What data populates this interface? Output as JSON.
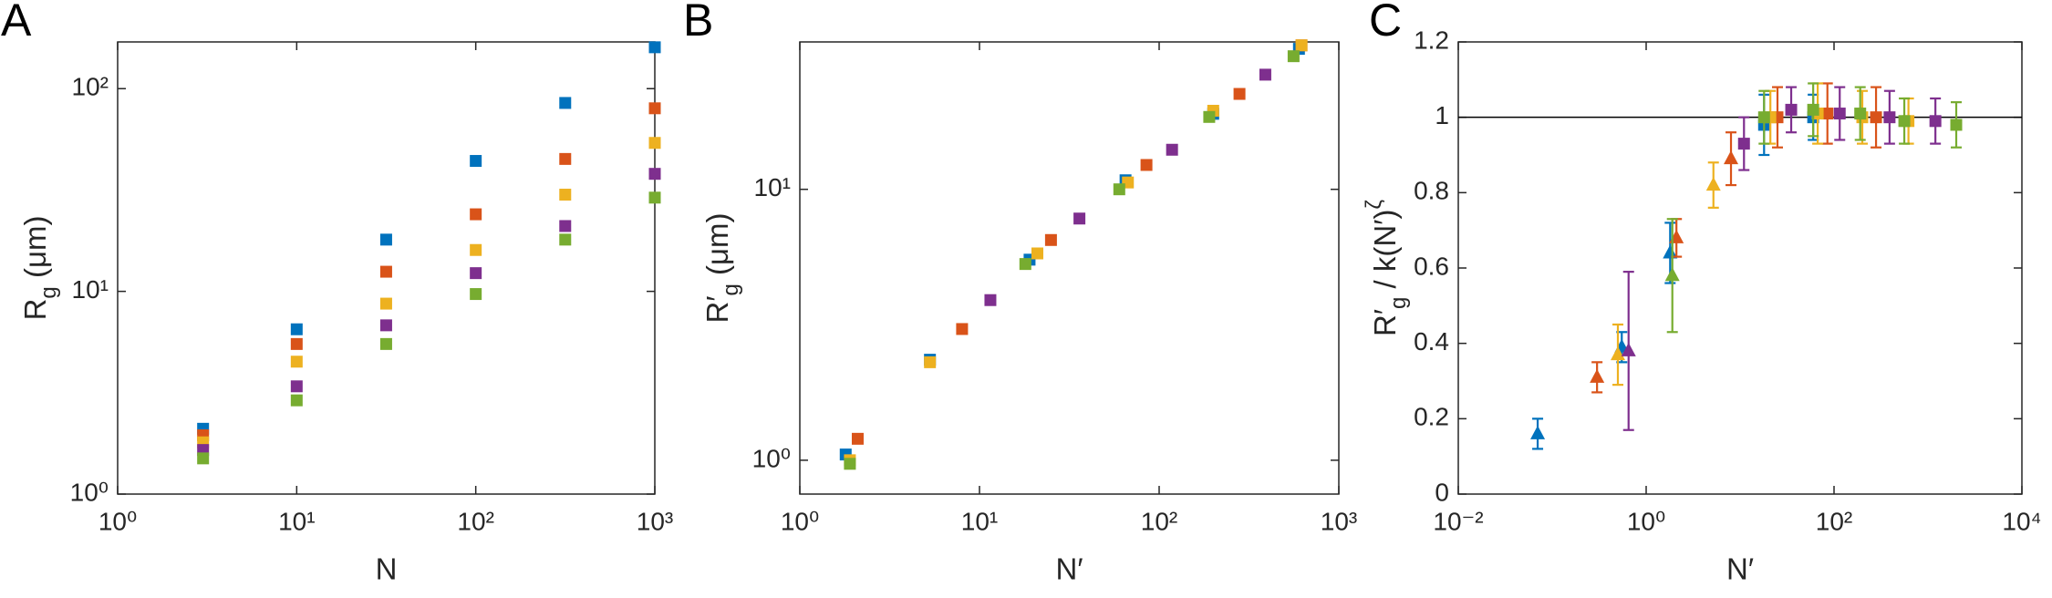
{
  "chart_data": [
    {
      "type": "scatter",
      "panel_label": "A",
      "xlabel": "N",
      "ylabel": [
        {
          "text": "R"
        },
        {
          "text": "g",
          "script": "sub"
        },
        {
          "text": " (μm)"
        }
      ],
      "xscale": "log",
      "yscale": "log",
      "xlim": [
        1,
        1000
      ],
      "ylim": [
        1,
        170
      ],
      "xticks": [
        {
          "value": 1,
          "label": "10⁰"
        },
        {
          "value": 10,
          "label": "10¹"
        },
        {
          "value": 100,
          "label": "10²"
        },
        {
          "value": 1000,
          "label": "10³"
        }
      ],
      "yticks": [
        {
          "value": 1,
          "label": "10⁰"
        },
        {
          "value": 10,
          "label": "10¹"
        },
        {
          "value": 100,
          "label": "10²"
        }
      ],
      "series": [
        {
          "color": "#0072BD",
          "x": [
            3,
            10,
            31.6,
            100,
            316,
            1000
          ],
          "values": [
            2.1,
            6.5,
            18,
            44,
            85,
            160
          ]
        },
        {
          "color": "#D95319",
          "x": [
            3,
            10,
            31.6,
            100,
            316,
            1000
          ],
          "values": [
            1.95,
            5.5,
            12.5,
            24,
            45,
            80
          ]
        },
        {
          "color": "#EDB120",
          "x": [
            3,
            10,
            31.6,
            100,
            316,
            1000
          ],
          "values": [
            1.8,
            4.5,
            8.7,
            16,
            30,
            54
          ]
        },
        {
          "color": "#7E2F8E",
          "x": [
            3,
            10,
            31.6,
            100,
            316,
            1000
          ],
          "values": [
            1.65,
            3.4,
            6.8,
            12.3,
            21,
            38
          ]
        },
        {
          "color": "#77AC30",
          "x": [
            3,
            10,
            31.6,
            100,
            316,
            1000
          ],
          "values": [
            1.5,
            2.9,
            5.5,
            9.7,
            18,
            29
          ]
        }
      ]
    },
    {
      "type": "scatter",
      "panel_label": "B",
      "xlabel": "N′",
      "ylabel": [
        {
          "text": "R′"
        },
        {
          "text": "g",
          "script": "sub"
        },
        {
          "text": " (μm)"
        }
      ],
      "xscale": "log",
      "yscale": "log",
      "xlim": [
        1,
        1000
      ],
      "ylim": [
        0.75,
        35
      ],
      "xticks": [
        {
          "value": 1,
          "label": "10⁰"
        },
        {
          "value": 10,
          "label": "10¹"
        },
        {
          "value": 100,
          "label": "10²"
        },
        {
          "value": 1000,
          "label": "10³"
        }
      ],
      "yticks": [
        {
          "value": 1,
          "label": "10⁰"
        },
        {
          "value": 10,
          "label": "10¹"
        }
      ],
      "series": [
        {
          "color": "#0072BD",
          "x": [
            1.8,
            5.3,
            19,
            65,
            200,
            600
          ],
          "values": [
            1.05,
            2.35,
            5.5,
            10.8,
            19,
            33
          ]
        },
        {
          "color": "#D95319",
          "x": [
            2.1,
            8,
            25,
            85,
            280,
            620
          ],
          "values": [
            1.2,
            3.05,
            6.5,
            12.3,
            22.5,
            34
          ]
        },
        {
          "color": "#EDB120",
          "x": [
            1.9,
            5.3,
            21,
            67,
            200,
            620
          ],
          "values": [
            1.0,
            2.3,
            5.8,
            10.6,
            19.5,
            34
          ]
        },
        {
          "color": "#7E2F8E",
          "x": [
            11.5,
            36,
            118,
            390
          ],
          "values": [
            3.9,
            7.8,
            14,
            26.5
          ]
        },
        {
          "color": "#77AC30",
          "x": [
            1.9,
            18,
            60,
            190,
            560
          ],
          "values": [
            0.97,
            5.3,
            10,
            18.5,
            31
          ]
        }
      ]
    },
    {
      "type": "scatter",
      "panel_label": "C",
      "xlabel": "N′",
      "ylabel": [
        {
          "text": "R′"
        },
        {
          "text": "g",
          "script": "sub"
        },
        {
          "text": " / k(N′)"
        },
        {
          "text": "ζ",
          "script": "super"
        }
      ],
      "xscale": "log",
      "yscale": "linear",
      "hline": 1,
      "xlim": [
        0.01,
        10000
      ],
      "ylim": [
        0,
        1.2
      ],
      "xticks": [
        {
          "value": 0.01,
          "label": "10⁻²"
        },
        {
          "value": 1,
          "label": "10⁰"
        },
        {
          "value": 100,
          "label": "10²"
        },
        {
          "value": 10000,
          "label": "10⁴"
        }
      ],
      "yticks": [
        0,
        0.2,
        0.4,
        0.6,
        0.8,
        1,
        1.2
      ],
      "series": [
        {
          "color": "#0072BD",
          "x": [
            0.07,
            0.55,
            1.8,
            18,
            60
          ],
          "values": [
            0.16,
            0.39,
            0.64,
            0.98,
            1.0
          ],
          "errors": [
            0.04,
            0.04,
            0.08,
            0.08,
            0.06
          ],
          "markers": [
            "triangle",
            "triangle",
            "triangle",
            "square",
            "square"
          ]
        },
        {
          "color": "#D95319",
          "x": [
            0.3,
            2.1,
            8,
            25,
            85,
            280
          ],
          "values": [
            0.31,
            0.68,
            0.89,
            1.0,
            1.01,
            1.0
          ],
          "errors": [
            0.04,
            0.05,
            0.07,
            0.08,
            0.08,
            0.08
          ],
          "markers": [
            "triangle",
            "triangle",
            "triangle",
            "square",
            "square",
            "square"
          ]
        },
        {
          "color": "#EDB120",
          "x": [
            0.5,
            5.2,
            21,
            67,
            200,
            620
          ],
          "values": [
            0.37,
            0.82,
            1.0,
            1.01,
            1.0,
            0.99
          ],
          "errors": [
            0.08,
            0.06,
            0.07,
            0.08,
            0.07,
            0.06
          ],
          "markers": [
            "triangle",
            "triangle",
            "square",
            "square",
            "square",
            "square"
          ]
        },
        {
          "color": "#7E2F8E",
          "x": [
            0.65,
            11,
            35,
            115,
            390,
            1200
          ],
          "values": [
            0.38,
            0.93,
            1.02,
            1.01,
            1.0,
            0.99
          ],
          "errors": [
            0.21,
            0.07,
            0.06,
            0.07,
            0.07,
            0.06
          ],
          "markers": [
            "triangle",
            "square",
            "square",
            "square",
            "square",
            "square"
          ]
        },
        {
          "color": "#77AC30",
          "x": [
            1.9,
            18,
            60,
            190,
            560,
            2000
          ],
          "values": [
            0.58,
            1.0,
            1.02,
            1.01,
            0.99,
            0.98
          ],
          "errors": [
            0.15,
            0.07,
            0.07,
            0.07,
            0.06,
            0.06
          ],
          "markers": [
            "triangle",
            "square",
            "square",
            "square",
            "square",
            "square"
          ]
        }
      ]
    }
  ]
}
